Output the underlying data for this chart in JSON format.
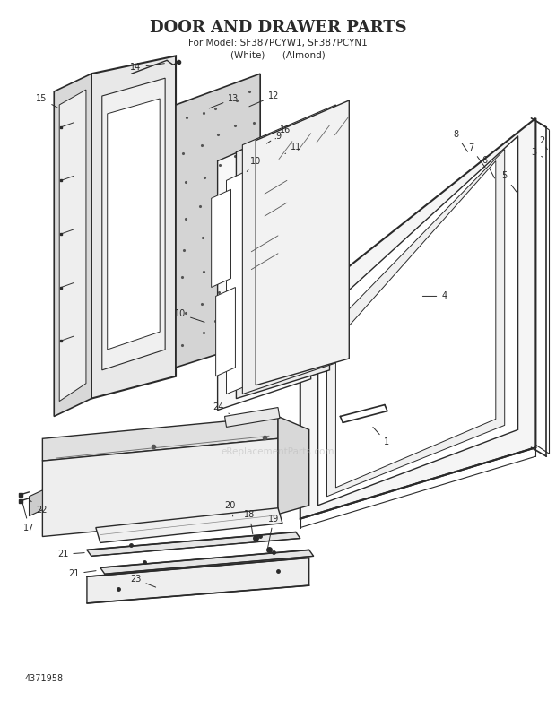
{
  "title_line1": "DOOR AND DRAWER PARTS",
  "title_line2": "For Model: SF387PCYW1, SF387PCYN1",
  "title_line3": "(White)      (Almond)",
  "footer": "4371958",
  "watermark": "eReplacementParts.com",
  "bg_color": "#ffffff",
  "line_color": "#2a2a2a",
  "title_fontsize": 13,
  "subtitle_fontsize": 7.5,
  "label_fontsize": 7,
  "fig_width": 6.2,
  "fig_height": 7.82,
  "dpi": 100
}
